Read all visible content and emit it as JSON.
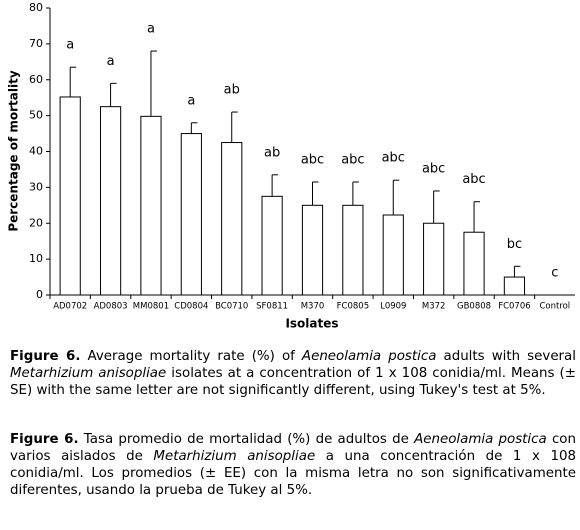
{
  "chart_data": {
    "type": "bar",
    "y_label": "Percentage of mortality",
    "x_label": "Isolates",
    "categories": [
      "AD0702",
      "AD0803",
      "MM0801",
      "CD0804",
      "BC0710",
      "SF0811",
      "M370",
      "FC0805",
      "L0909",
      "M372",
      "GB0808",
      "FC0706",
      "Control"
    ],
    "values": [
      55.2,
      52.5,
      49.8,
      45,
      42.5,
      27.5,
      25,
      25,
      22.3,
      20,
      17.5,
      5,
      0
    ],
    "errors": [
      8.3,
      6.5,
      18.2,
      3,
      8.5,
      6,
      6.5,
      6.5,
      9.7,
      9,
      8.5,
      3,
      0
    ],
    "letters": [
      "a",
      "a",
      "a",
      "a",
      "ab",
      "ab",
      "abc",
      "abc",
      "abc",
      "abc",
      "abc",
      "bc",
      "c"
    ],
    "color": "#ffffff",
    "ylim": [
      0,
      80
    ],
    "yticks": [
      0,
      10,
      20,
      30,
      40,
      50,
      60,
      70,
      80
    ],
    "grid": false
  },
  "captions": [
    [
      {
        "text": "Figure 6.",
        "bold": true
      },
      {
        "text": " Average mortality rate (%) of "
      },
      {
        "text": "Aeneolamia postica",
        "italic": true
      },
      {
        "text": " adults with several "
      },
      {
        "text": "Metarhizium anisopliae",
        "italic": true
      },
      {
        "text": " isolates at a concentration of 1 x 108 conidia/ml. Means (± SE) with the same letter are not significantly different, using Tukey's test at 5%."
      }
    ],
    [
      {
        "text": "Figure 6.",
        "bold": true
      },
      {
        "text": " Tasa promedio de mortalidad (%) de adultos de "
      },
      {
        "text": "Aeneolamia postica",
        "italic": true
      },
      {
        "text": " con varios aislados de "
      },
      {
        "text": "Metarhizium anisopliae",
        "italic": true
      },
      {
        "text": " a una concentración de 1 x 108 conidia/ml. Los promedios (± EE) con la misma letra no son significativamente diferentes, usando la prueba de Tukey al 5%."
      }
    ]
  ]
}
